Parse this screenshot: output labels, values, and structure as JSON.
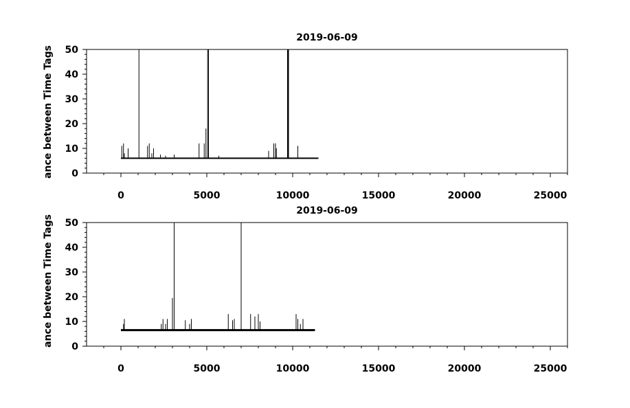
{
  "chart_data": [
    {
      "type": "line",
      "title": "2019-06-09",
      "ylabel": "ance between Time Tags",
      "xlabel": "",
      "xlim": [
        -2000,
        26000
      ],
      "ylim": [
        0,
        50
      ],
      "x_ticks": [
        0,
        5000,
        10000,
        15000,
        20000,
        25000
      ],
      "y_ticks": [
        0,
        10,
        20,
        30,
        40,
        50
      ],
      "x_range": [
        0,
        11500
      ],
      "baseline": 6,
      "grid": false,
      "spikes": [
        {
          "x": 50,
          "y": 11
        },
        {
          "x": 150,
          "y": 12
        },
        {
          "x": 200,
          "y": 8
        },
        {
          "x": 420,
          "y": 10
        },
        {
          "x": 1050,
          "y": 50
        },
        {
          "x": 1550,
          "y": 11
        },
        {
          "x": 1650,
          "y": 12
        },
        {
          "x": 1800,
          "y": 8
        },
        {
          "x": 1900,
          "y": 10
        },
        {
          "x": 2300,
          "y": 7.5
        },
        {
          "x": 2600,
          "y": 7
        },
        {
          "x": 3100,
          "y": 7.5
        },
        {
          "x": 4550,
          "y": 12
        },
        {
          "x": 4850,
          "y": 12
        },
        {
          "x": 4950,
          "y": 18
        },
        {
          "x": 5050,
          "y": 50
        },
        {
          "x": 5100,
          "y": 50
        },
        {
          "x": 5700,
          "y": 7
        },
        {
          "x": 8600,
          "y": 9
        },
        {
          "x": 8900,
          "y": 12
        },
        {
          "x": 9000,
          "y": 12
        },
        {
          "x": 9050,
          "y": 10
        },
        {
          "x": 9700,
          "y": 50
        },
        {
          "x": 9730,
          "y": 50
        },
        {
          "x": 9760,
          "y": 50
        },
        {
          "x": 10300,
          "y": 11
        }
      ]
    },
    {
      "type": "line",
      "title": "2019-06-09",
      "ylabel": "ance between Time Tags",
      "xlabel": "",
      "xlim": [
        -2000,
        26000
      ],
      "ylim": [
        0,
        50
      ],
      "x_ticks": [
        0,
        5000,
        10000,
        15000,
        20000,
        25000
      ],
      "y_ticks": [
        0,
        10,
        20,
        30,
        40,
        50
      ],
      "x_range": [
        0,
        11300
      ],
      "baseline": 6.5,
      "grid": false,
      "spikes": [
        {
          "x": 150,
          "y": 9
        },
        {
          "x": 200,
          "y": 11
        },
        {
          "x": 2350,
          "y": 9
        },
        {
          "x": 2450,
          "y": 11
        },
        {
          "x": 2600,
          "y": 9
        },
        {
          "x": 2700,
          "y": 11
        },
        {
          "x": 3000,
          "y": 19.5
        },
        {
          "x": 3100,
          "y": 50
        },
        {
          "x": 3750,
          "y": 10.5
        },
        {
          "x": 4000,
          "y": 9
        },
        {
          "x": 4100,
          "y": 11
        },
        {
          "x": 6250,
          "y": 13
        },
        {
          "x": 6500,
          "y": 10.5
        },
        {
          "x": 6600,
          "y": 11
        },
        {
          "x": 7000,
          "y": 50
        },
        {
          "x": 7550,
          "y": 13
        },
        {
          "x": 7800,
          "y": 12
        },
        {
          "x": 8000,
          "y": 13
        },
        {
          "x": 8100,
          "y": 10
        },
        {
          "x": 10200,
          "y": 13
        },
        {
          "x": 10300,
          "y": 11
        },
        {
          "x": 10450,
          "y": 9
        },
        {
          "x": 10600,
          "y": 11
        }
      ]
    }
  ]
}
